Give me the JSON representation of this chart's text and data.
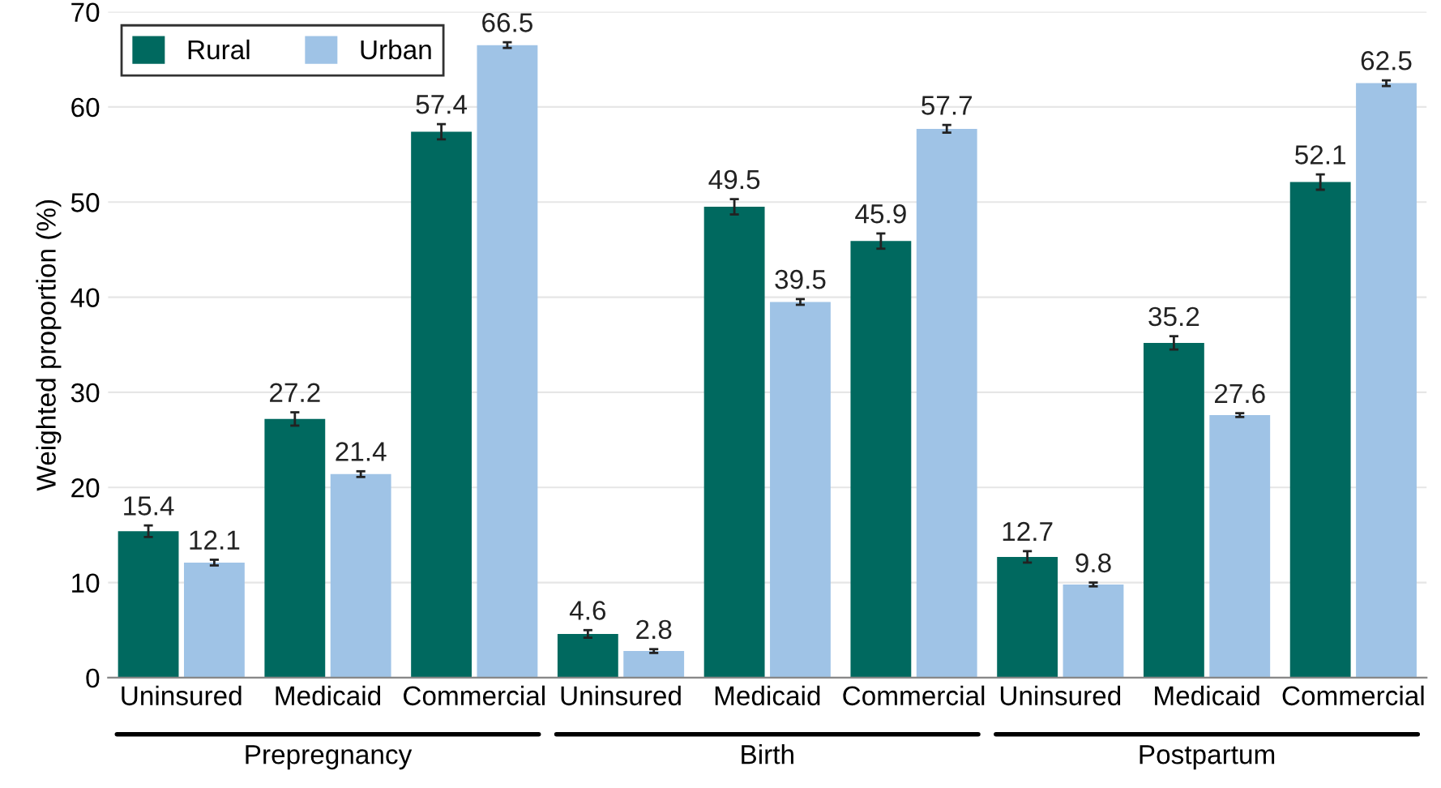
{
  "chart_data": {
    "type": "bar",
    "ylabel": "Weighted proportion (%)",
    "categories": [
      "Uninsured",
      "Medicaid",
      "Commercial",
      "Uninsured",
      "Medicaid",
      "Commercial",
      "Uninsured",
      "Medicaid",
      "Commercial"
    ],
    "series": [
      {
        "name": "Rural",
        "color": "#00695f",
        "values": [
          15.4,
          27.2,
          57.4,
          4.6,
          49.5,
          45.9,
          12.7,
          35.2,
          52.1
        ],
        "errors": [
          0.6,
          0.7,
          0.8,
          0.4,
          0.8,
          0.8,
          0.6,
          0.7,
          0.8
        ]
      },
      {
        "name": "Urban",
        "color": "#9fc3e6",
        "values": [
          12.1,
          21.4,
          66.5,
          2.8,
          39.5,
          57.7,
          9.8,
          27.6,
          62.5
        ],
        "errors": [
          0.3,
          0.3,
          0.3,
          0.2,
          0.3,
          0.4,
          0.2,
          0.2,
          0.3
        ]
      }
    ],
    "annotations": [
      "Prepregnancy",
      "Birth",
      "Postpartum"
    ],
    "ylim": [
      0,
      70
    ],
    "yticks": [
      0,
      10,
      20,
      30,
      40,
      50,
      60,
      70
    ],
    "grid": "y",
    "legend": "top left",
    "data_labels": true
  }
}
